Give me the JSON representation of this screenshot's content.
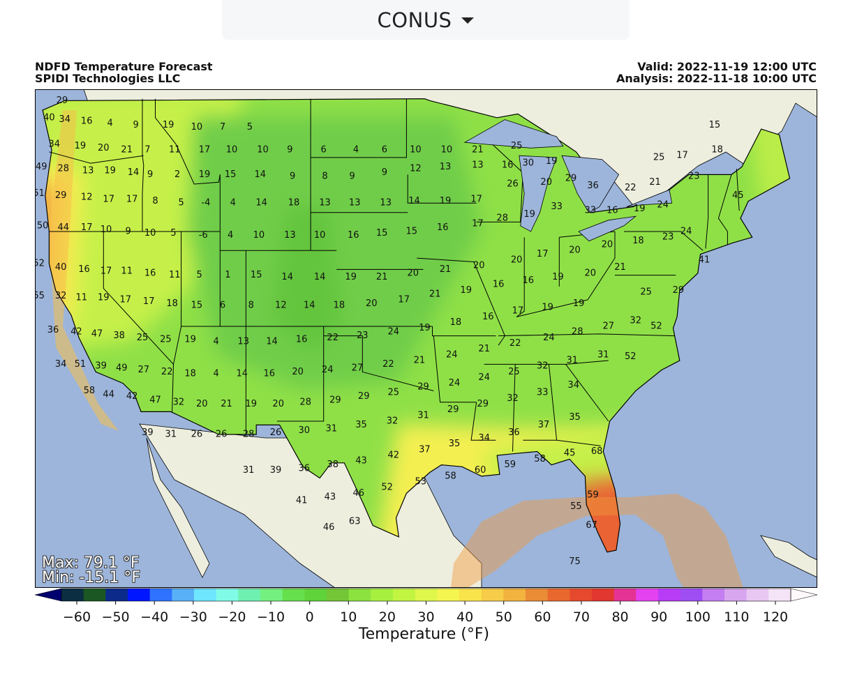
{
  "region_selector": {
    "value": "CONUS",
    "options": [
      "CONUS"
    ]
  },
  "header": {
    "title": "NDFD Temperature Forecast",
    "subtitle": "SPIDI Technologies LLC",
    "valid": "Valid: 2022-11-19 12:00 UTC",
    "analysis": "Analysis: 2022-11-18 10:00 UTC"
  },
  "stats": {
    "max": "Max: 79.1 °F",
    "min": "Min: -15.1 °F"
  },
  "colorbar": {
    "title": "Temperature (°F)",
    "ticks": [
      "−60",
      "−50",
      "−40",
      "−30",
      "−20",
      "−10",
      "0",
      "10",
      "20",
      "30",
      "40",
      "50",
      "60",
      "70",
      "80",
      "90",
      "100",
      "110",
      "120"
    ],
    "colors": [
      "#00006e",
      "#0b2e43",
      "#1a5722",
      "#0c2a8a",
      "#0016ff",
      "#2f72ff",
      "#58b0f6",
      "#6ee6ff",
      "#7ffbe7",
      "#6ef0b0",
      "#73f07f",
      "#66e04c",
      "#5ed43a",
      "#74c636",
      "#8ce23e",
      "#a8f040",
      "#c2f442",
      "#dff64b",
      "#f5f54f",
      "#f9e44c",
      "#f6cc48",
      "#f2b33f",
      "#ea8b36",
      "#e8682e",
      "#e64a2e",
      "#e23630",
      "#e53395",
      "#e441f0",
      "#b83cf6",
      "#9f4ef4",
      "#c47ef0",
      "#d8a6ef",
      "#e8c8f2",
      "#f5e4f7",
      "#fff8fb"
    ]
  },
  "map_palette": {
    "ocean": "#9db5da",
    "land_outside": "#eeeedf",
    "lakes": "#9db5da",
    "cold_interior": "#6fcd48",
    "mid": "#8fe047",
    "warm_mid": "#c6f04a",
    "warm": "#f4ef51",
    "warmer": "#f6c04a",
    "orange": "#ef9a3c",
    "red": "#e3392d",
    "magenta": "#e63ea4"
  },
  "temperature_labels": [
    {
      "v": "29",
      "lon": -123.2,
      "lat": 48.9
    },
    {
      "v": "40",
      "lon": -124.2,
      "lat": 48.0
    },
    {
      "v": "34",
      "lon": -123.0,
      "lat": 47.9
    },
    {
      "v": "16",
      "lon": -121.3,
      "lat": 47.8
    },
    {
      "v": "4",
      "lon": -119.5,
      "lat": 47.7
    },
    {
      "v": "9",
      "lon": -117.5,
      "lat": 47.6
    },
    {
      "v": "19",
      "lon": -115.0,
      "lat": 47.6
    },
    {
      "v": "10",
      "lon": -112.8,
      "lat": 47.5
    },
    {
      "v": "7",
      "lon": -110.8,
      "lat": 47.5
    },
    {
      "v": "5",
      "lon": -108.7,
      "lat": 47.5
    },
    {
      "v": "34",
      "lon": -123.8,
      "lat": 46.6
    },
    {
      "v": "19",
      "lon": -121.8,
      "lat": 46.5
    },
    {
      "v": "20",
      "lon": -120.0,
      "lat": 46.4
    },
    {
      "v": "21",
      "lon": -118.2,
      "lat": 46.3
    },
    {
      "v": "7",
      "lon": -116.6,
      "lat": 46.3
    },
    {
      "v": "11",
      "lon": -114.5,
      "lat": 46.3
    },
    {
      "v": "17",
      "lon": -112.2,
      "lat": 46.3
    },
    {
      "v": "10",
      "lon": -110.1,
      "lat": 46.3
    },
    {
      "v": "10",
      "lon": -107.7,
      "lat": 46.3
    },
    {
      "v": "9",
      "lon": -105.6,
      "lat": 46.3
    },
    {
      "v": "6",
      "lon": -103.0,
      "lat": 46.3
    },
    {
      "v": "4",
      "lon": -100.5,
      "lat": 46.3
    },
    {
      "v": "6",
      "lon": -98.3,
      "lat": 46.3
    },
    {
      "v": "10",
      "lon": -95.9,
      "lat": 46.3
    },
    {
      "v": "10",
      "lon": -93.5,
      "lat": 46.3
    },
    {
      "v": "21",
      "lon": -91.1,
      "lat": 46.3
    },
    {
      "v": "25",
      "lon": -88.1,
      "lat": 46.5
    },
    {
      "v": "49",
      "lon": -124.8,
      "lat": 45.4
    },
    {
      "v": "28",
      "lon": -123.1,
      "lat": 45.3
    },
    {
      "v": "13",
      "lon": -121.2,
      "lat": 45.2
    },
    {
      "v": "19",
      "lon": -119.5,
      "lat": 45.2
    },
    {
      "v": "14",
      "lon": -117.7,
      "lat": 45.1
    },
    {
      "v": "9",
      "lon": -116.4,
      "lat": 45.0
    },
    {
      "v": "2",
      "lon": -114.3,
      "lat": 45.0
    },
    {
      "v": "19",
      "lon": -112.2,
      "lat": 45.0
    },
    {
      "v": "15",
      "lon": -110.2,
      "lat": 45.0
    },
    {
      "v": "14",
      "lon": -107.9,
      "lat": 45.0
    },
    {
      "v": "9",
      "lon": -105.4,
      "lat": 44.9
    },
    {
      "v": "8",
      "lon": -102.9,
      "lat": 44.9
    },
    {
      "v": "9",
      "lon": -100.8,
      "lat": 44.9
    },
    {
      "v": "9",
      "lon": -98.3,
      "lat": 45.1
    },
    {
      "v": "12",
      "lon": -95.9,
      "lat": 45.3
    },
    {
      "v": "13",
      "lon": -93.6,
      "lat": 45.4
    },
    {
      "v": "13",
      "lon": -91.1,
      "lat": 45.5
    },
    {
      "v": "16",
      "lon": -88.8,
      "lat": 45.5
    },
    {
      "v": "30",
      "lon": -87.2,
      "lat": 45.6
    },
    {
      "v": "19",
      "lon": -85.4,
      "lat": 45.7
    },
    {
      "v": "20",
      "lon": -85.8,
      "lat": 44.6
    },
    {
      "v": "26",
      "lon": -88.4,
      "lat": 44.5
    },
    {
      "v": "29",
      "lon": -83.9,
      "lat": 44.8
    },
    {
      "v": "51",
      "lon": -125.0,
      "lat": 44.0
    },
    {
      "v": "29",
      "lon": -123.3,
      "lat": 43.9
    },
    {
      "v": "12",
      "lon": -121.3,
      "lat": 43.8
    },
    {
      "v": "17",
      "lon": -119.6,
      "lat": 43.7
    },
    {
      "v": "17",
      "lon": -117.8,
      "lat": 43.7
    },
    {
      "v": "8",
      "lon": -116.0,
      "lat": 43.6
    },
    {
      "v": "5",
      "lon": -114.0,
      "lat": 43.5
    },
    {
      "v": "-4",
      "lon": -112.1,
      "lat": 43.5
    },
    {
      "v": "4",
      "lon": -110.0,
      "lat": 43.5
    },
    {
      "v": "14",
      "lon": -107.8,
      "lat": 43.5
    },
    {
      "v": "18",
      "lon": -105.3,
      "lat": 43.5
    },
    {
      "v": "13",
      "lon": -102.9,
      "lat": 43.5
    },
    {
      "v": "13",
      "lon": -100.6,
      "lat": 43.5
    },
    {
      "v": "13",
      "lon": -98.2,
      "lat": 43.5
    },
    {
      "v": "14",
      "lon": -96.0,
      "lat": 43.6
    },
    {
      "v": "19",
      "lon": -93.6,
      "lat": 43.6
    },
    {
      "v": "17",
      "lon": -91.2,
      "lat": 43.7
    },
    {
      "v": "50",
      "lon": -124.7,
      "lat": 42.3
    },
    {
      "v": "44",
      "lon": -123.1,
      "lat": 42.2
    },
    {
      "v": "17",
      "lon": -121.3,
      "lat": 42.2
    },
    {
      "v": "10",
      "lon": -119.8,
      "lat": 42.1
    },
    {
      "v": "9",
      "lon": -118.1,
      "lat": 42.0
    },
    {
      "v": "10",
      "lon": -116.4,
      "lat": 41.9
    },
    {
      "v": "5",
      "lon": -114.6,
      "lat": 41.9
    },
    {
      "v": "-6",
      "lon": -112.3,
      "lat": 41.8
    },
    {
      "v": "4",
      "lon": -110.2,
      "lat": 41.8
    },
    {
      "v": "10",
      "lon": -108.0,
      "lat": 41.8
    },
    {
      "v": "13",
      "lon": -105.6,
      "lat": 41.8
    },
    {
      "v": "10",
      "lon": -103.3,
      "lat": 41.8
    },
    {
      "v": "16",
      "lon": -100.7,
      "lat": 41.8
    },
    {
      "v": "15",
      "lon": -98.5,
      "lat": 41.9
    },
    {
      "v": "15",
      "lon": -96.2,
      "lat": 42.0
    },
    {
      "v": "16",
      "lon": -93.8,
      "lat": 42.2
    },
    {
      "v": "17",
      "lon": -91.1,
      "lat": 42.4
    },
    {
      "v": "28",
      "lon": -89.2,
      "lat": 42.7
    },
    {
      "v": "19",
      "lon": -87.1,
      "lat": 42.9
    },
    {
      "v": "33",
      "lon": -85.0,
      "lat": 43.3
    },
    {
      "v": "36",
      "lon": -82.2,
      "lat": 44.4
    },
    {
      "v": "22",
      "lon": -79.3,
      "lat": 44.3
    },
    {
      "v": "21",
      "lon": -77.4,
      "lat": 44.6
    },
    {
      "v": "25",
      "lon": -77.1,
      "lat": 45.9
    },
    {
      "v": "17",
      "lon": -75.3,
      "lat": 46.0
    },
    {
      "v": "15",
      "lon": -72.8,
      "lat": 47.6
    },
    {
      "v": "18",
      "lon": -72.6,
      "lat": 46.3
    },
    {
      "v": "23",
      "lon": -74.4,
      "lat": 44.9
    },
    {
      "v": "45",
      "lon": -71.0,
      "lat": 43.9
    },
    {
      "v": "24",
      "lon": -76.8,
      "lat": 43.4
    },
    {
      "v": "19",
      "lon": -78.6,
      "lat": 43.2
    },
    {
      "v": "16",
      "lon": -80.7,
      "lat": 43.1
    },
    {
      "v": "33",
      "lon": -82.4,
      "lat": 43.1
    },
    {
      "v": "52",
      "lon": -125.0,
      "lat": 40.3
    },
    {
      "v": "40",
      "lon": -123.3,
      "lat": 40.1
    },
    {
      "v": "16",
      "lon": -121.5,
      "lat": 40.0
    },
    {
      "v": "17",
      "lon": -119.8,
      "lat": 39.9
    },
    {
      "v": "11",
      "lon": -118.2,
      "lat": 39.9
    },
    {
      "v": "16",
      "lon": -116.4,
      "lat": 39.8
    },
    {
      "v": "11",
      "lon": -114.5,
      "lat": 39.7
    },
    {
      "v": "5",
      "lon": -112.6,
      "lat": 39.7
    },
    {
      "v": "1",
      "lon": -110.4,
      "lat": 39.7
    },
    {
      "v": "15",
      "lon": -108.2,
      "lat": 39.7
    },
    {
      "v": "14",
      "lon": -105.8,
      "lat": 39.6
    },
    {
      "v": "14",
      "lon": -103.3,
      "lat": 39.6
    },
    {
      "v": "19",
      "lon": -100.9,
      "lat": 39.6
    },
    {
      "v": "21",
      "lon": -98.5,
      "lat": 39.6
    },
    {
      "v": "20",
      "lon": -96.1,
      "lat": 39.8
    },
    {
      "v": "21",
      "lon": -93.6,
      "lat": 40.0
    },
    {
      "v": "20",
      "lon": -91.0,
      "lat": 40.2
    },
    {
      "v": "20",
      "lon": -88.1,
      "lat": 40.5
    },
    {
      "v": "17",
      "lon": -86.1,
      "lat": 40.8
    },
    {
      "v": "20",
      "lon": -83.6,
      "lat": 41.0
    },
    {
      "v": "20",
      "lon": -81.1,
      "lat": 41.3
    },
    {
      "v": "18",
      "lon": -78.7,
      "lat": 41.5
    },
    {
      "v": "23",
      "lon": -76.4,
      "lat": 41.7
    },
    {
      "v": "24",
      "lon": -75.0,
      "lat": 42.0
    },
    {
      "v": "41",
      "lon": -73.6,
      "lat": 40.5
    },
    {
      "v": "55",
      "lon": -125.0,
      "lat": 38.6
    },
    {
      "v": "32",
      "lon": -123.3,
      "lat": 38.6
    },
    {
      "v": "11",
      "lon": -121.7,
      "lat": 38.5
    },
    {
      "v": "19",
      "lon": -120.0,
      "lat": 38.5
    },
    {
      "v": "17",
      "lon": -118.3,
      "lat": 38.4
    },
    {
      "v": "17",
      "lon": -116.5,
      "lat": 38.3
    },
    {
      "v": "18",
      "lon": -114.7,
      "lat": 38.2
    },
    {
      "v": "15",
      "lon": -112.8,
      "lat": 38.1
    },
    {
      "v": "6",
      "lon": -110.8,
      "lat": 38.1
    },
    {
      "v": "8",
      "lon": -108.6,
      "lat": 38.1
    },
    {
      "v": "12",
      "lon": -106.3,
      "lat": 38.1
    },
    {
      "v": "14",
      "lon": -104.1,
      "lat": 38.1
    },
    {
      "v": "18",
      "lon": -101.8,
      "lat": 38.1
    },
    {
      "v": "20",
      "lon": -99.3,
      "lat": 38.2
    },
    {
      "v": "17",
      "lon": -96.8,
      "lat": 38.4
    },
    {
      "v": "21",
      "lon": -94.4,
      "lat": 38.7
    },
    {
      "v": "19",
      "lon": -92.0,
      "lat": 38.9
    },
    {
      "v": "16",
      "lon": -89.5,
      "lat": 39.2
    },
    {
      "v": "16",
      "lon": -87.2,
      "lat": 39.4
    },
    {
      "v": "19",
      "lon": -84.9,
      "lat": 39.6
    },
    {
      "v": "20",
      "lon": -82.4,
      "lat": 39.8
    },
    {
      "v": "21",
      "lon": -80.1,
      "lat": 40.1
    },
    {
      "v": "25",
      "lon": -78.1,
      "lat": 38.8
    },
    {
      "v": "29",
      "lon": -75.6,
      "lat": 38.9
    },
    {
      "v": "36",
      "lon": -123.9,
      "lat": 36.8
    },
    {
      "v": "42",
      "lon": -122.1,
      "lat": 36.7
    },
    {
      "v": "47",
      "lon": -120.5,
      "lat": 36.6
    },
    {
      "v": "38",
      "lon": -118.8,
      "lat": 36.5
    },
    {
      "v": "25",
      "lon": -117.0,
      "lat": 36.4
    },
    {
      "v": "25",
      "lon": -115.2,
      "lat": 36.3
    },
    {
      "v": "19",
      "lon": -113.3,
      "lat": 36.3
    },
    {
      "v": "4",
      "lon": -111.3,
      "lat": 36.2
    },
    {
      "v": "13",
      "lon": -109.2,
      "lat": 36.2
    },
    {
      "v": "14",
      "lon": -107.0,
      "lat": 36.2
    },
    {
      "v": "16",
      "lon": -104.7,
      "lat": 36.3
    },
    {
      "v": "22",
      "lon": -102.3,
      "lat": 36.4
    },
    {
      "v": "23",
      "lon": -100.0,
      "lat": 36.5
    },
    {
      "v": "24",
      "lon": -97.6,
      "lat": 36.7
    },
    {
      "v": "19",
      "lon": -95.2,
      "lat": 36.9
    },
    {
      "v": "18",
      "lon": -92.8,
      "lat": 37.2
    },
    {
      "v": "16",
      "lon": -90.3,
      "lat": 37.5
    },
    {
      "v": "17",
      "lon": -88.0,
      "lat": 37.8
    },
    {
      "v": "19",
      "lon": -85.7,
      "lat": 38.0
    },
    {
      "v": "19",
      "lon": -83.3,
      "lat": 38.2
    },
    {
      "v": "34",
      "lon": -123.3,
      "lat": 35.0
    },
    {
      "v": "51",
      "lon": -121.8,
      "lat": 35.0
    },
    {
      "v": "39",
      "lon": -120.2,
      "lat": 34.9
    },
    {
      "v": "49",
      "lon": -118.6,
      "lat": 34.8
    },
    {
      "v": "27",
      "lon": -116.9,
      "lat": 34.7
    },
    {
      "v": "22",
      "lon": -115.1,
      "lat": 34.6
    },
    {
      "v": "18",
      "lon": -113.3,
      "lat": 34.5
    },
    {
      "v": "4",
      "lon": -111.3,
      "lat": 34.5
    },
    {
      "v": "14",
      "lon": -109.3,
      "lat": 34.5
    },
    {
      "v": "16",
      "lon": -107.2,
      "lat": 34.5
    },
    {
      "v": "20",
      "lon": -105.0,
      "lat": 34.6
    },
    {
      "v": "24",
      "lon": -102.7,
      "lat": 34.7
    },
    {
      "v": "27",
      "lon": -100.4,
      "lat": 34.8
    },
    {
      "v": "22",
      "lon": -98.0,
      "lat": 35.0
    },
    {
      "v": "21",
      "lon": -95.6,
      "lat": 35.2
    },
    {
      "v": "24",
      "lon": -93.1,
      "lat": 35.5
    },
    {
      "v": "21",
      "lon": -90.6,
      "lat": 35.8
    },
    {
      "v": "22",
      "lon": -88.2,
      "lat": 36.1
    },
    {
      "v": "24",
      "lon": -85.6,
      "lat": 36.4
    },
    {
      "v": "28",
      "lon": -83.4,
      "lat": 36.7
    },
    {
      "v": "27",
      "lon": -81.0,
      "lat": 37.0
    },
    {
      "v": "32",
      "lon": -78.9,
      "lat": 37.3
    },
    {
      "v": "52",
      "lon": -77.3,
      "lat": 37.0
    },
    {
      "v": "58",
      "lon": -121.1,
      "lat": 33.6
    },
    {
      "v": "44",
      "lon": -119.6,
      "lat": 33.4
    },
    {
      "v": "42",
      "lon": -117.8,
      "lat": 33.3
    },
    {
      "v": "47",
      "lon": -116.0,
      "lat": 33.1
    },
    {
      "v": "32",
      "lon": -114.2,
      "lat": 33.0
    },
    {
      "v": "20",
      "lon": -112.4,
      "lat": 32.9
    },
    {
      "v": "21",
      "lon": -110.5,
      "lat": 32.9
    },
    {
      "v": "19",
      "lon": -108.6,
      "lat": 32.9
    },
    {
      "v": "20",
      "lon": -106.5,
      "lat": 32.9
    },
    {
      "v": "28",
      "lon": -104.4,
      "lat": 33.0
    },
    {
      "v": "29",
      "lon": -102.1,
      "lat": 33.1
    },
    {
      "v": "29",
      "lon": -99.9,
      "lat": 33.3
    },
    {
      "v": "25",
      "lon": -97.6,
      "lat": 33.5
    },
    {
      "v": "29",
      "lon": -95.3,
      "lat": 33.8
    },
    {
      "v": "24",
      "lon": -92.9,
      "lat": 34.0
    },
    {
      "v": "24",
      "lon": -90.6,
      "lat": 34.3
    },
    {
      "v": "25",
      "lon": -88.3,
      "lat": 34.6
    },
    {
      "v": "32",
      "lon": -86.1,
      "lat": 34.9
    },
    {
      "v": "31",
      "lon": -83.8,
      "lat": 35.2
    },
    {
      "v": "31",
      "lon": -81.4,
      "lat": 35.5
    },
    {
      "v": "52",
      "lon": -79.3,
      "lat": 35.4
    },
    {
      "v": "39",
      "lon": -116.6,
      "lat": 31.4
    },
    {
      "v": "31",
      "lon": -114.8,
      "lat": 31.3
    },
    {
      "v": "26",
      "lon": -112.8,
      "lat": 31.3
    },
    {
      "v": "26",
      "lon": -110.9,
      "lat": 31.3
    },
    {
      "v": "28",
      "lon": -108.8,
      "lat": 31.3
    },
    {
      "v": "26",
      "lon": -106.7,
      "lat": 31.4
    },
    {
      "v": "30",
      "lon": -104.5,
      "lat": 31.5
    },
    {
      "v": "31",
      "lon": -102.4,
      "lat": 31.6
    },
    {
      "v": "35",
      "lon": -100.1,
      "lat": 31.8
    },
    {
      "v": "32",
      "lon": -97.7,
      "lat": 32.0
    },
    {
      "v": "31",
      "lon": -95.3,
      "lat": 32.3
    },
    {
      "v": "29",
      "lon": -93.0,
      "lat": 32.6
    },
    {
      "v": "29",
      "lon": -90.7,
      "lat": 32.9
    },
    {
      "v": "32",
      "lon": -88.4,
      "lat": 33.2
    },
    {
      "v": "33",
      "lon": -86.1,
      "lat": 33.5
    },
    {
      "v": "34",
      "lon": -83.7,
      "lat": 33.9
    },
    {
      "v": "31",
      "lon": -108.8,
      "lat": 29.4
    },
    {
      "v": "39",
      "lon": -106.7,
      "lat": 29.4
    },
    {
      "v": "36",
      "lon": -104.5,
      "lat": 29.5
    },
    {
      "v": "38",
      "lon": -102.3,
      "lat": 29.7
    },
    {
      "v": "43",
      "lon": -100.1,
      "lat": 29.9
    },
    {
      "v": "42",
      "lon": -97.6,
      "lat": 30.2
    },
    {
      "v": "37",
      "lon": -95.2,
      "lat": 30.5
    },
    {
      "v": "35",
      "lon": -92.9,
      "lat": 30.8
    },
    {
      "v": "34",
      "lon": -90.6,
      "lat": 31.1
    },
    {
      "v": "36",
      "lon": -88.3,
      "lat": 31.4
    },
    {
      "v": "37",
      "lon": -86.0,
      "lat": 31.8
    },
    {
      "v": "35",
      "lon": -83.6,
      "lat": 32.2
    },
    {
      "v": "41",
      "lon": -104.7,
      "lat": 27.8
    },
    {
      "v": "43",
      "lon": -102.5,
      "lat": 28.0
    },
    {
      "v": "46",
      "lon": -100.3,
      "lat": 28.2
    },
    {
      "v": "52",
      "lon": -98.1,
      "lat": 28.5
    },
    {
      "v": "53",
      "lon": -95.5,
      "lat": 28.8
    },
    {
      "v": "58",
      "lon": -93.2,
      "lat": 29.1
    },
    {
      "v": "60",
      "lon": -90.9,
      "lat": 29.4
    },
    {
      "v": "59",
      "lon": -88.6,
      "lat": 29.7
    },
    {
      "v": "58",
      "lon": -86.3,
      "lat": 30.0
    },
    {
      "v": "45",
      "lon": -84.0,
      "lat": 30.3
    },
    {
      "v": "68",
      "lon": -81.9,
      "lat": 30.4
    },
    {
      "v": "46",
      "lon": -102.6,
      "lat": 26.4
    },
    {
      "v": "63",
      "lon": -100.6,
      "lat": 26.7
    },
    {
      "v": "59",
      "lon": -82.2,
      "lat": 28.1
    },
    {
      "v": "55",
      "lon": -83.5,
      "lat": 27.5
    },
    {
      "v": "67",
      "lon": -82.3,
      "lat": 26.5
    },
    {
      "v": "75",
      "lon": -83.6,
      "lat": 24.6
    }
  ]
}
